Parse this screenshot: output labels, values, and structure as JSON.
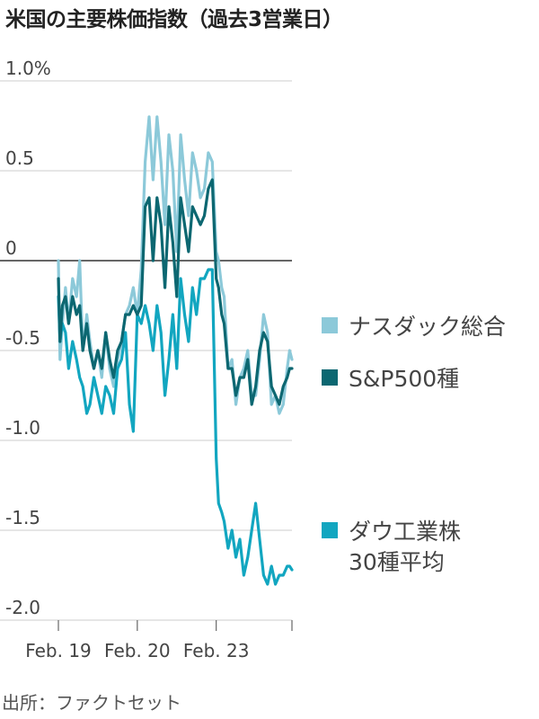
{
  "colors": {
    "nasdaq": "#8cc9d9",
    "sp500": "#0c6771",
    "dow": "#12a6c0",
    "grid": "#cccccc",
    "zero_line": "#333333",
    "text": "#444444"
  },
  "chart_data": {
    "type": "line",
    "title": "米国の主要株価指数（過去3営業日）",
    "xlabel": "",
    "ylabel": "",
    "ylim": [
      -2.0,
      1.0
    ],
    "y_ticks": [
      1.0,
      0.5,
      0,
      -0.5,
      -1.0,
      -1.5,
      -2.0
    ],
    "y_tick_labels": [
      "1.0%",
      "0.5",
      "0",
      "-0.5",
      "-1.0",
      "-1.5",
      "-2.0"
    ],
    "x_range": [
      0,
      29.6
    ],
    "x_ticks": [
      0,
      10,
      20,
      29.6
    ],
    "x_tick_labels": [
      "Feb. 19",
      "Feb. 20",
      "Feb. 23"
    ],
    "grid": true,
    "legend_position": "right",
    "series": [
      {
        "name": "ナスダック総合",
        "key": "nasdaq",
        "x": [
          0,
          0.2,
          0.5,
          0.9,
          1.3,
          1.8,
          2.3,
          2.7,
          3.1,
          3.6,
          4.0,
          4.5,
          5.0,
          5.5,
          6.0,
          6.5,
          7.0,
          7.5,
          8.0,
          8.5,
          9.0,
          9.5,
          10.0,
          10.5,
          11.0,
          11.5,
          12.0,
          12.5,
          13.0,
          13.5,
          14.0,
          14.5,
          15.0,
          15.5,
          16.0,
          16.5,
          17.0,
          17.5,
          18.0,
          18.5,
          19.0,
          19.5,
          20.0,
          20.3,
          20.7,
          21.0,
          21.5,
          22.0,
          22.5,
          23.0,
          23.5,
          24.0,
          24.5,
          25.0,
          25.5,
          26.0,
          26.5,
          27.0,
          27.5,
          28.0,
          28.5,
          29.0,
          29.3,
          29.6
        ],
        "values": [
          0.0,
          -0.55,
          -0.35,
          -0.15,
          -0.35,
          -0.1,
          -0.2,
          0.0,
          -0.5,
          -0.3,
          -0.45,
          -0.6,
          -0.5,
          -0.65,
          -0.4,
          -0.6,
          -0.7,
          -0.55,
          -0.45,
          -0.3,
          -0.25,
          -0.15,
          -0.3,
          -0.05,
          0.55,
          0.8,
          0.45,
          0.8,
          0.55,
          0.2,
          0.7,
          0.5,
          0.05,
          0.7,
          0.45,
          0.25,
          0.6,
          0.5,
          0.35,
          0.4,
          0.6,
          0.55,
          0.05,
          0.0,
          -0.15,
          -0.2,
          -0.6,
          -0.55,
          -0.8,
          -0.65,
          -0.6,
          -0.5,
          -0.75,
          -0.75,
          -0.55,
          -0.3,
          -0.4,
          -0.8,
          -0.75,
          -0.85,
          -0.8,
          -0.6,
          -0.5,
          -0.55
        ]
      },
      {
        "name": "S&P500種",
        "key": "sp500",
        "x": [
          0,
          0.2,
          0.5,
          0.9,
          1.3,
          1.8,
          2.3,
          2.7,
          3.1,
          3.6,
          4.0,
          4.5,
          5.0,
          5.5,
          6.0,
          6.5,
          7.0,
          7.5,
          8.0,
          8.5,
          9.0,
          9.5,
          10.0,
          10.5,
          11.0,
          11.5,
          12.0,
          12.5,
          13.0,
          13.5,
          14.0,
          14.5,
          15.0,
          15.5,
          16.0,
          16.5,
          17.0,
          17.5,
          18.0,
          18.5,
          19.0,
          19.5,
          20.0,
          20.3,
          20.7,
          21.0,
          21.5,
          22.0,
          22.5,
          23.0,
          23.5,
          24.0,
          24.5,
          25.0,
          25.5,
          26.0,
          26.5,
          27.0,
          27.5,
          28.0,
          28.5,
          29.0,
          29.3,
          29.6
        ],
        "values": [
          -0.1,
          -0.45,
          -0.25,
          -0.2,
          -0.35,
          -0.2,
          -0.3,
          -0.25,
          -0.5,
          -0.35,
          -0.5,
          -0.6,
          -0.5,
          -0.6,
          -0.4,
          -0.55,
          -0.65,
          -0.5,
          -0.45,
          -0.3,
          -0.3,
          -0.25,
          -0.3,
          -0.25,
          0.3,
          0.35,
          0.0,
          0.35,
          0.2,
          -0.15,
          0.3,
          0.1,
          -0.2,
          0.35,
          0.2,
          0.05,
          0.3,
          0.25,
          0.2,
          0.25,
          0.4,
          0.45,
          -0.1,
          -0.15,
          -0.3,
          -0.35,
          -0.6,
          -0.6,
          -0.75,
          -0.65,
          -0.65,
          -0.55,
          -0.8,
          -0.7,
          -0.5,
          -0.4,
          -0.45,
          -0.7,
          -0.75,
          -0.8,
          -0.7,
          -0.65,
          -0.6,
          -0.6
        ]
      },
      {
        "name": "ダウ工業株\n30種平均",
        "key": "dow",
        "x": [
          0,
          0.2,
          0.5,
          0.9,
          1.3,
          1.8,
          2.3,
          2.7,
          3.1,
          3.6,
          4.0,
          4.5,
          5.0,
          5.5,
          6.0,
          6.5,
          7.0,
          7.5,
          8.0,
          8.5,
          9.0,
          9.5,
          10.0,
          10.5,
          11.0,
          11.5,
          12.0,
          12.5,
          13.0,
          13.5,
          14.0,
          14.5,
          15.0,
          15.5,
          16.0,
          16.5,
          17.0,
          17.5,
          18.0,
          18.5,
          19.0,
          19.5,
          20.0,
          20.3,
          20.7,
          21.0,
          21.5,
          22.0,
          22.5,
          23.0,
          23.5,
          24.0,
          24.5,
          25.0,
          25.5,
          26.0,
          26.5,
          27.0,
          27.5,
          28.0,
          28.5,
          29.0,
          29.3,
          29.6
        ],
        "values": [
          -0.2,
          -0.45,
          -0.35,
          -0.4,
          -0.6,
          -0.45,
          -0.55,
          -0.65,
          -0.7,
          -0.85,
          -0.8,
          -0.65,
          -0.75,
          -0.85,
          -0.7,
          -0.75,
          -0.85,
          -0.6,
          -0.55,
          -0.4,
          -0.8,
          -0.95,
          -0.3,
          -0.35,
          -0.25,
          -0.35,
          -0.5,
          -0.25,
          -0.4,
          -0.75,
          -0.55,
          -0.3,
          -0.6,
          -0.1,
          -0.3,
          -0.45,
          -0.15,
          -0.3,
          -0.1,
          -0.1,
          -0.05,
          -0.05,
          -1.1,
          -1.35,
          -1.4,
          -1.45,
          -1.6,
          -1.5,
          -1.65,
          -1.55,
          -1.75,
          -1.65,
          -1.5,
          -1.35,
          -1.55,
          -1.75,
          -1.8,
          -1.7,
          -1.8,
          -1.75,
          -1.75,
          -1.7,
          -1.7,
          -1.72
        ]
      }
    ]
  },
  "source": "出所：ファクトセット"
}
